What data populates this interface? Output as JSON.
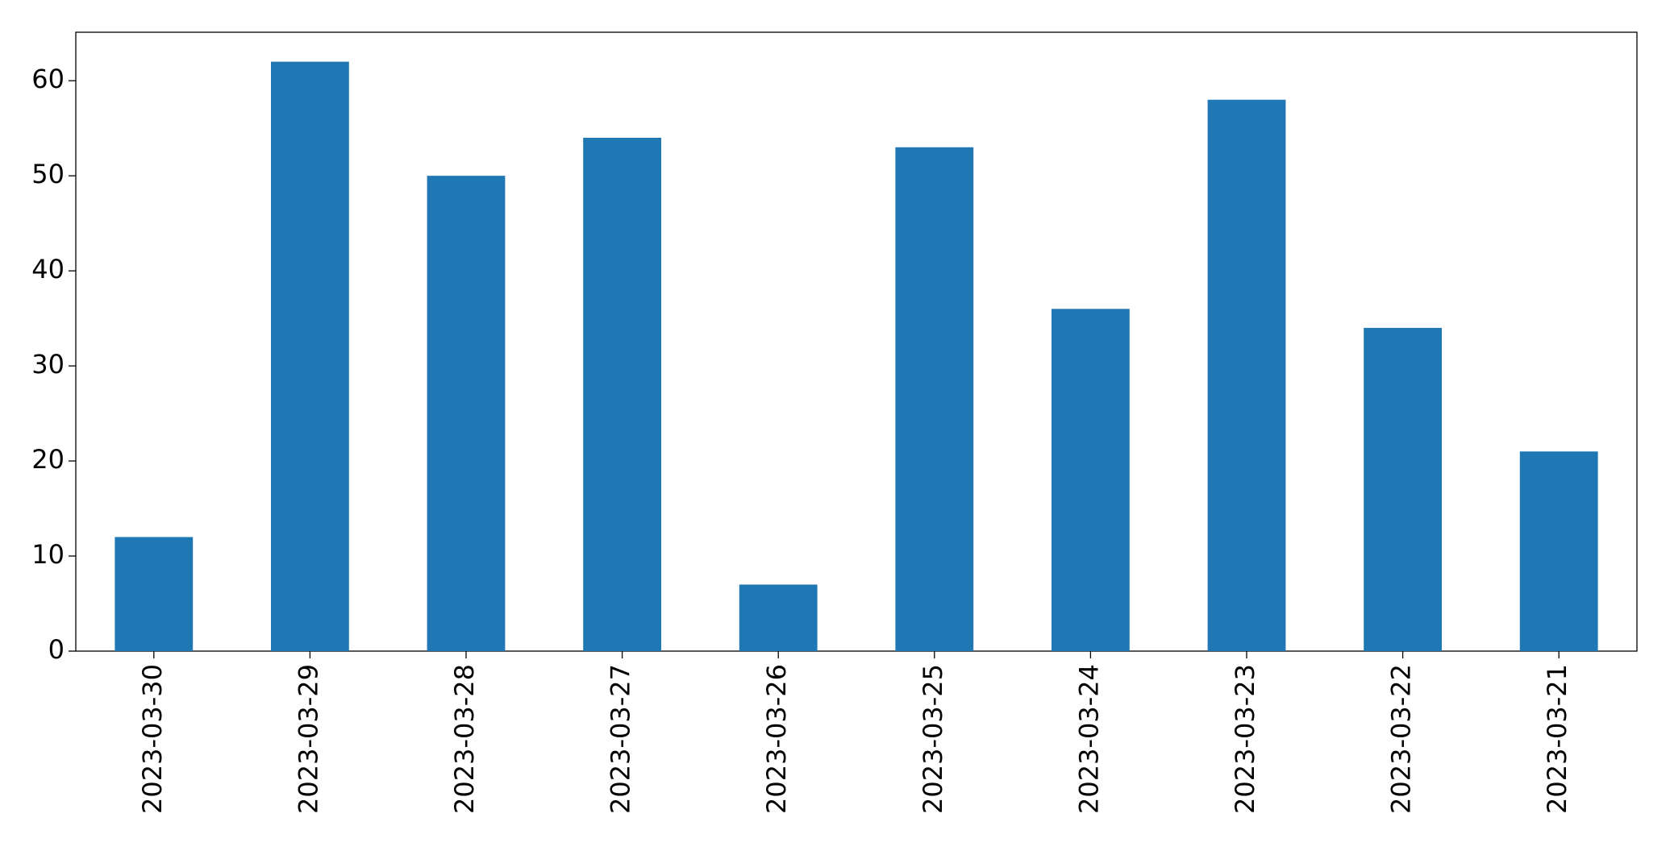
{
  "chart_data": {
    "type": "bar",
    "categories": [
      "2023-03-30",
      "2023-03-29",
      "2023-03-28",
      "2023-03-27",
      "2023-03-26",
      "2023-03-25",
      "2023-03-24",
      "2023-03-23",
      "2023-03-22",
      "2023-03-21"
    ],
    "values": [
      12,
      62,
      50,
      54,
      7,
      53,
      36,
      58,
      34,
      21
    ],
    "color": "#1f77b4",
    "ylim": [
      0,
      65.1
    ],
    "yticks": [
      0,
      10,
      20,
      30,
      40,
      50,
      60
    ],
    "grid": false
  }
}
